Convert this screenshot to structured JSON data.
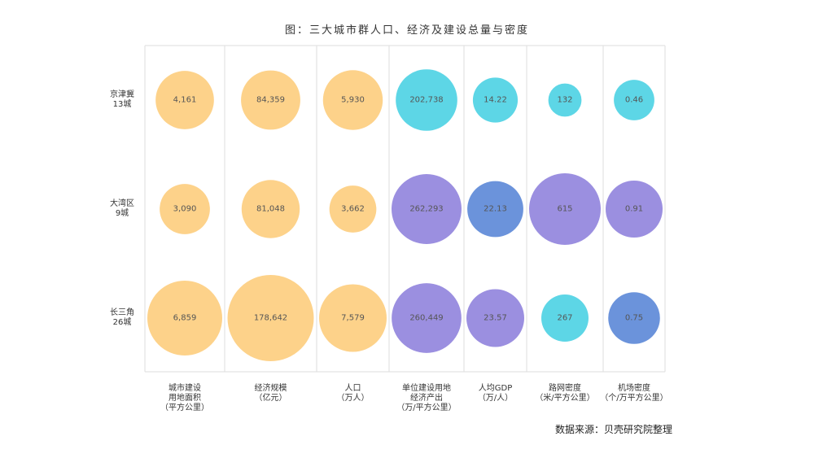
{
  "chart_data": {
    "type": "bubble-matrix",
    "title": "图：三大城市群人口、经济及建设总量与密度",
    "source": "数据来源：贝壳研究院整理",
    "rows": [
      {
        "name_line1": "京津冀",
        "name_line2": "13城"
      },
      {
        "name_line1": "大湾区",
        "name_line2": "9城"
      },
      {
        "name_line1": "长三角",
        "name_line2": "26城"
      }
    ],
    "columns": [
      {
        "lines": [
          "城市建设",
          "用地面积",
          "（平方公里）"
        ]
      },
      {
        "lines": [
          "经济规模",
          "（亿元）"
        ]
      },
      {
        "lines": [
          "人口",
          "（万人）"
        ]
      },
      {
        "lines": [
          "单位建设用地",
          "经济产出",
          "（万/平方公里）"
        ]
      },
      {
        "lines": [
          "人均GDP",
          "（万/人）"
        ]
      },
      {
        "lines": [
          "路网密度",
          "（米/平方公里）"
        ]
      },
      {
        "lines": [
          "机场密度",
          "（个/万平方公里）"
        ]
      }
    ],
    "values": [
      [
        "4,161",
        "84,359",
        "5,930",
        "202,738",
        "14.22",
        "132",
        "0.46"
      ],
      [
        "3,090",
        "81,048",
        "3,662",
        "262,293",
        "22.13",
        "615",
        "0.91"
      ],
      [
        "6,859",
        "178,642",
        "7,579",
        "260,449",
        "23.57",
        "267",
        "0.75"
      ]
    ],
    "colors": {
      "orange": "#fdd28a",
      "cyan": "#5dd6e6",
      "purple": "#9b8fe0",
      "blue": "#6b93db",
      "grid": "#dddddd"
    },
    "bubble_colors": [
      [
        "orange",
        "orange",
        "orange",
        "cyan",
        "cyan",
        "cyan",
        "cyan"
      ],
      [
        "orange",
        "orange",
        "orange",
        "purple",
        "blue",
        "purple",
        "purple"
      ],
      [
        "orange",
        "orange",
        "orange",
        "purple",
        "purple",
        "cyan",
        "blue"
      ]
    ]
  }
}
